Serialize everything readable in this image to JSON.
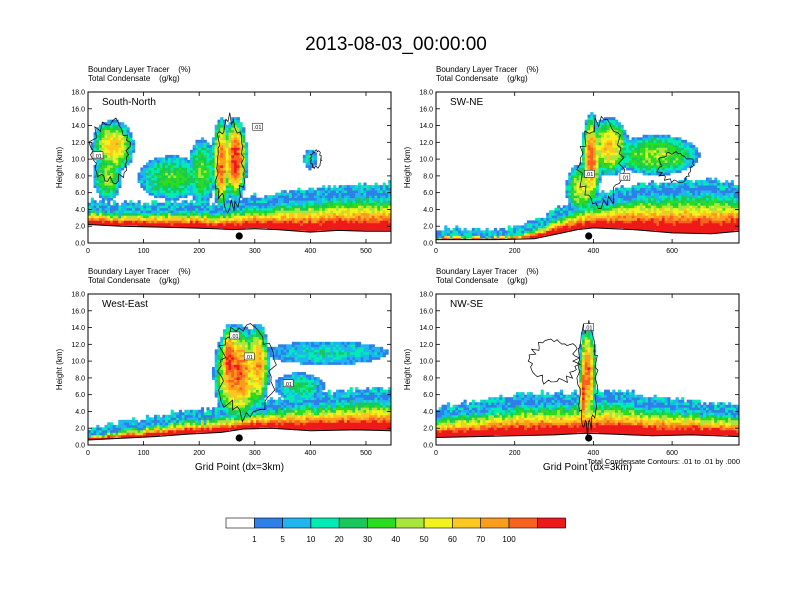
{
  "main_title": "2013-08-03_00:00:00",
  "colors": {
    "levels": [
      "#ffffff",
      "#2f7fe8",
      "#1fb6ef",
      "#00ecb4",
      "#19c85a",
      "#2cdc1e",
      "#a8e63c",
      "#f3f21a",
      "#fcc81f",
      "#fa9c1c",
      "#f8621e",
      "#ee1a1a"
    ],
    "terrain_line": "#000000"
  },
  "colorbar": {
    "labels": [
      "1",
      "5",
      "10",
      "20",
      "30",
      "40",
      "50",
      "60",
      "70",
      "100"
    ]
  },
  "contour_info": "Total Condensate Contours: .01 to .01 by .000",
  "chart_data": [
    {
      "type": "heatmap",
      "title": "South-North",
      "subtitle_line1": "Boundary Layer Tracer    (%)",
      "subtitle_line2": "Total Condensate    (g/kg)",
      "xlabel": "",
      "ylabel": "Height (km)",
      "xlim": [
        0,
        545
      ],
      "ylim": [
        0,
        18
      ],
      "xticks": [
        0,
        100,
        200,
        300,
        400,
        500
      ],
      "yticks": [
        "0.0",
        "2.0",
        "4.0",
        "6.0",
        "8.0",
        "10.0",
        "12.0",
        "14.0",
        "16.0",
        "18.0"
      ],
      "marker_x": 272,
      "contour_labels": [
        {
          "x": 18,
          "y": 10.4,
          "text": ".01"
        },
        {
          "x": 305,
          "y": 13.8,
          "text": ".01"
        }
      ]
    },
    {
      "type": "heatmap",
      "title": "SW-NE",
      "subtitle_line1": "Boundary Layer Tracer    (%)",
      "subtitle_line2": "Total Condensate    (g/kg)",
      "xlabel": "",
      "ylabel": "Height (km)",
      "xlim": [
        0,
        770
      ],
      "ylim": [
        0,
        18
      ],
      "xticks": [
        0,
        200,
        400,
        600
      ],
      "yticks": [
        "0.0",
        "2.0",
        "4.0",
        "6.0",
        "8.0",
        "10.0",
        "12.0",
        "14.0",
        "16.0",
        "18.0"
      ],
      "marker_x": 388,
      "contour_labels": [
        {
          "x": 390,
          "y": 8.2,
          "text": ".01"
        },
        {
          "x": 480,
          "y": 7.8,
          "text": ".01"
        }
      ]
    },
    {
      "type": "heatmap",
      "title": "West-East",
      "subtitle_line1": "Boundary Layer Tracer    (%)",
      "subtitle_line2": "Total Condensate    (g/kg)",
      "xlabel": "Grid Point (dx=3km)",
      "ylabel": "Height (km)",
      "xlim": [
        0,
        545
      ],
      "ylim": [
        0,
        18
      ],
      "xticks": [
        0,
        100,
        200,
        300,
        400,
        500
      ],
      "yticks": [
        "0.0",
        "2.0",
        "4.0",
        "6.0",
        "8.0",
        "10.0",
        "12.0",
        "14.0",
        "16.0",
        "18.0"
      ],
      "marker_x": 272,
      "contour_labels": [
        {
          "x": 264,
          "y": 13.0,
          "text": ".01"
        },
        {
          "x": 290,
          "y": 10.5,
          "text": ".01"
        },
        {
          "x": 360,
          "y": 7.3,
          "text": ".01"
        }
      ]
    },
    {
      "type": "heatmap",
      "title": "NW-SE",
      "subtitle_line1": "Boundary Layer Tracer    (%)",
      "subtitle_line2": "Total Condensate    (g/kg)",
      "xlabel": "Grid Point (dx=3km)",
      "ylabel": "Height (km)",
      "xlim": [
        0,
        770
      ],
      "ylim": [
        0,
        18
      ],
      "xticks": [
        0,
        200,
        400,
        600
      ],
      "yticks": [
        "0.0",
        "2.0",
        "4.0",
        "6.0",
        "8.0",
        "10.0",
        "12.0",
        "14.0",
        "16.0",
        "18.0"
      ],
      "marker_x": 388,
      "contour_labels": [
        {
          "x": 388,
          "y": 14.0,
          "text": ".01"
        }
      ]
    }
  ]
}
